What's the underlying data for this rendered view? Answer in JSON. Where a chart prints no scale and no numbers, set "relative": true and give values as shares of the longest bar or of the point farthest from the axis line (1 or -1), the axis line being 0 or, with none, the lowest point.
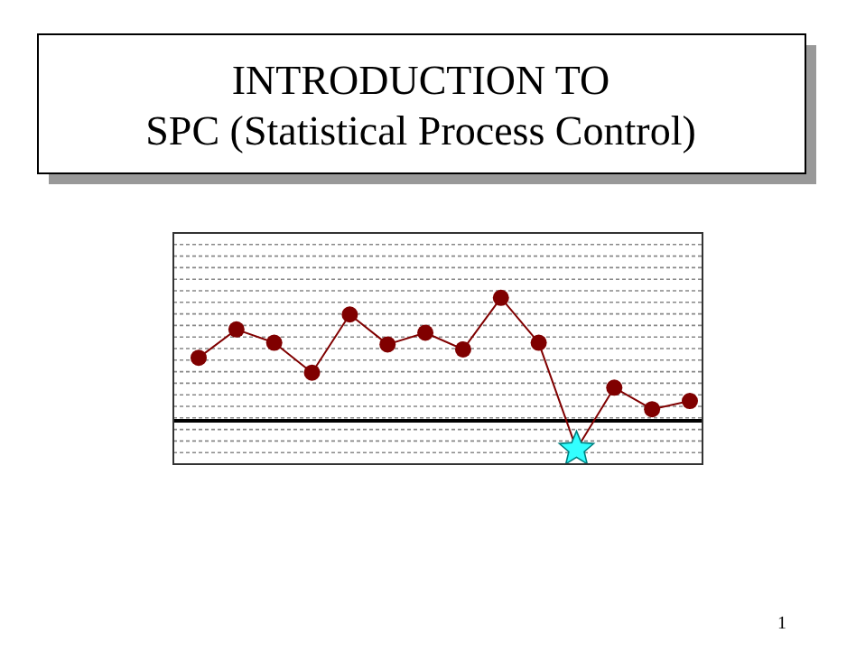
{
  "chart_data": {
    "type": "line",
    "title": "INTRODUCTION TO\nSPC (Statistical Process Control)",
    "relative": true,
    "categories": [
      null,
      null,
      null,
      null,
      null,
      null,
      null,
      null,
      null,
      null,
      null,
      null,
      null,
      null
    ],
    "series": [
      {
        "color": "#800000",
        "marker": "circle",
        "values": [
          0.64,
          0.81,
          0.73,
          0.55,
          0.9,
          0.72,
          0.79,
          0.69,
          1,
          0.73,
          0.09,
          0.46,
          0.33,
          0.38
        ],
        "colors": [
          "#800000",
          "#800000",
          "#800000",
          "#800000",
          "#800000",
          "#800000",
          "#800000",
          "#800000",
          "#800000",
          "#800000",
          "#33ffff",
          "#800000",
          "#800000",
          "#800000"
        ]
      }
    ],
    "ref_lines": [
      {
        "axis": "y",
        "value": 0.26,
        "color": "#000000",
        "line_style": "solid"
      }
    ],
    "grid": true,
    "annotations": [
      "1"
    ]
  }
}
